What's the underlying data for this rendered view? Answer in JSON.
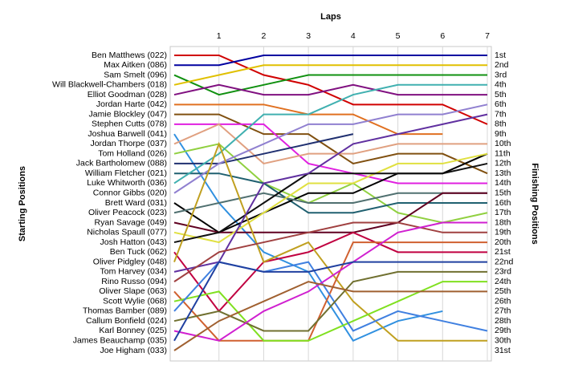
{
  "chart_data": {
    "type": "line",
    "title": "Laps",
    "y_label": "Starting Positions",
    "y2_label": "Finishing Positions",
    "x": [
      0,
      1,
      2,
      3,
      4,
      5,
      6,
      7
    ],
    "xlim": [
      0,
      7
    ],
    "xticks": [
      1,
      2,
      3,
      4,
      5,
      6,
      7
    ],
    "ylim": [
      31,
      1
    ],
    "grid": true,
    "finishing_labels": [
      "1st",
      "2nd",
      "3rd",
      "4th",
      "5th",
      "6th",
      "7th",
      "8th",
      "9th",
      "10th",
      "11th",
      "12th",
      "13th",
      "14th",
      "15th",
      "16th",
      "17th",
      "18th",
      "19th",
      "20th",
      "21st",
      "22nd",
      "23rd",
      "24th",
      "25th",
      "26th",
      "27th",
      "28th",
      "29th",
      "30th",
      "31st"
    ],
    "series": [
      {
        "name": "Ben Matthews (022)",
        "color": "#d00000",
        "values": [
          1,
          1,
          3,
          4,
          6,
          6,
          6,
          8
        ]
      },
      {
        "name": "Max Aitken (086)",
        "color": "#0000a0",
        "values": [
          2,
          2,
          1,
          1,
          1,
          1,
          1,
          1
        ]
      },
      {
        "name": "Sam Smelt (096)",
        "color": "#109010",
        "values": [
          3,
          5,
          4,
          3,
          3,
          3,
          3,
          3
        ]
      },
      {
        "name": "Will Blackwell-Chambers (018)",
        "color": "#e0c000",
        "values": [
          4,
          3,
          2,
          2,
          2,
          2,
          2,
          2
        ]
      },
      {
        "name": "Elliot Goodman (028)",
        "color": "#801080",
        "values": [
          5,
          4,
          5,
          5,
          4,
          5,
          5,
          5
        ]
      },
      {
        "name": "Jordan Harte (042)",
        "color": "#e07020",
        "values": [
          6,
          6,
          6,
          7,
          7,
          9,
          9,
          null
        ]
      },
      {
        "name": "Jamie Blockley (047)",
        "color": "#805010",
        "values": [
          7,
          7,
          9,
          9,
          12,
          11,
          11,
          13
        ]
      },
      {
        "name": "Stephen Cutts (078)",
        "color": "#e020e0",
        "values": [
          8,
          8,
          8,
          12,
          13,
          14,
          14,
          14
        ]
      },
      {
        "name": "Joshua Barwell (041)",
        "color": "#3090e0",
        "values": [
          9,
          16,
          21,
          23,
          30,
          28,
          27,
          null
        ]
      },
      {
        "name": "Jordan Thorpe (037)",
        "color": "#e0a080",
        "values": [
          10,
          8,
          12,
          11,
          11,
          10,
          10,
          10
        ]
      },
      {
        "name": "Tom Holland (026)",
        "color": "#90d040",
        "values": [
          11,
          10,
          14,
          16,
          14,
          17,
          18,
          17
        ]
      },
      {
        "name": "Jack Bartholomew (088)",
        "color": "#203070",
        "values": [
          12,
          12,
          11,
          10,
          9,
          null,
          null,
          null
        ]
      },
      {
        "name": "William Fletcher (021)",
        "color": "#206070",
        "values": [
          13,
          13,
          14,
          17,
          17,
          16,
          16,
          16
        ]
      },
      {
        "name": "Luke Whitworth (036)",
        "color": "#40b0b0",
        "values": [
          14,
          11,
          7,
          7,
          5,
          4,
          4,
          4
        ]
      },
      {
        "name": "Connor Gibbs (020)",
        "color": "#9080d0",
        "values": [
          15,
          12,
          10,
          8,
          8,
          7,
          7,
          6
        ]
      },
      {
        "name": "Brett Ward (031)",
        "color": "#000000",
        "values": [
          16,
          19,
          17,
          15,
          15,
          13,
          13,
          11
        ]
      },
      {
        "name": "Oliver Peacock (023)",
        "color": "#507070",
        "values": [
          17,
          16,
          15,
          16,
          16,
          15,
          15,
          15
        ]
      },
      {
        "name": "Ryan Savage (049)",
        "color": "#600020",
        "values": [
          18,
          19,
          19,
          19,
          19,
          18,
          15,
          15
        ]
      },
      {
        "name": "Nicholas Spaull (077)",
        "color": "#e0e040",
        "values": [
          19,
          20,
          17,
          14,
          14,
          12,
          12,
          11
        ]
      },
      {
        "name": "Josh Hatton (043)",
        "color": "#101010",
        "values": [
          20,
          19,
          16,
          13,
          13,
          13,
          13,
          12
        ]
      },
      {
        "name": "Ben Tuck (062)",
        "color": "#c00040",
        "values": [
          21,
          27,
          22,
          21,
          19,
          21,
          21,
          21
        ]
      },
      {
        "name": "Oliver Pidgley (048)",
        "color": "#c0a020",
        "values": [
          22,
          10,
          22,
          20,
          26,
          30,
          30,
          30
        ]
      },
      {
        "name": "Tom Harvey (034)",
        "color": "#6030a0",
        "values": [
          23,
          22,
          14,
          13,
          10,
          9,
          8,
          7
        ]
      },
      {
        "name": "Rino Russo (094)",
        "color": "#a04040",
        "values": [
          24,
          21,
          20,
          19,
          18,
          18,
          19,
          19
        ]
      },
      {
        "name": "Oliver Slape (063)",
        "color": "#d06030",
        "values": [
          25,
          30,
          30,
          30,
          20,
          20,
          20,
          20
        ]
      },
      {
        "name": "Scott Wylie (068)",
        "color": "#80e020",
        "values": [
          26,
          25,
          30,
          30,
          28,
          26,
          24,
          24
        ]
      },
      {
        "name": "Thomas Bamber (089)",
        "color": "#4080e0",
        "values": [
          27,
          22,
          23,
          22,
          29,
          27,
          28,
          29
        ]
      },
      {
        "name": "Callum Bonfield (024)",
        "color": "#707030",
        "values": [
          28,
          27,
          29,
          29,
          24,
          23,
          23,
          23
        ]
      },
      {
        "name": "Karl Bonney (025)",
        "color": "#d020d0",
        "values": [
          29,
          30,
          27,
          25,
          22,
          19,
          18,
          18
        ]
      },
      {
        "name": "James Beauchamp (035)",
        "color": "#2040a0",
        "values": [
          30,
          22,
          23,
          23,
          22,
          22,
          22,
          22
        ]
      },
      {
        "name": "Joe Higham (033)",
        "color": "#a06030",
        "values": [
          31,
          28,
          26,
          24,
          25,
          25,
          25,
          25
        ]
      }
    ]
  }
}
